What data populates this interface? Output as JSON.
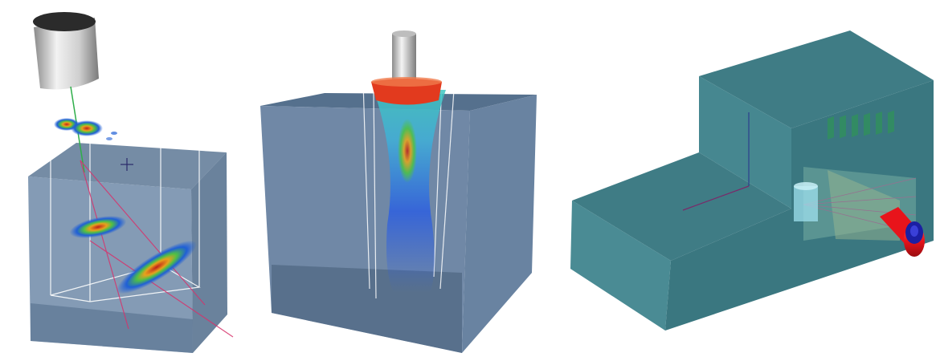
{
  "scenes": [
    {
      "id": "angled-probe-inspection",
      "colors": {
        "block": "#6f8aa8",
        "block_dark": "#4d6580",
        "block_top": "#587390",
        "probe": "#d9d9d9",
        "beam_ray": "#d6336c",
        "guide_line": "#2fae4a"
      },
      "icons": [
        "cylinder-probe-icon",
        "crosshair-icon"
      ]
    },
    {
      "id": "straight-probe-beam",
      "colors": {
        "block": "#6e88a6",
        "block_dark": "#4e6681",
        "block_top": "#55708d",
        "probe": "#d0d0d0",
        "probe_foot": "#e23a1e"
      },
      "icons": [
        "cylinder-probe-icon"
      ]
    },
    {
      "id": "stepped-part-phased-array",
      "colors": {
        "part_front": "#4a8b94",
        "part_top": "#3f7c85",
        "part_side": "#3a7780",
        "transducer": "#e8141b",
        "transducer_cap": "#1b1fa3",
        "wedge": "#9fe0ee"
      },
      "icons": [
        "transducer-icon",
        "wedge-icon"
      ]
    }
  ]
}
